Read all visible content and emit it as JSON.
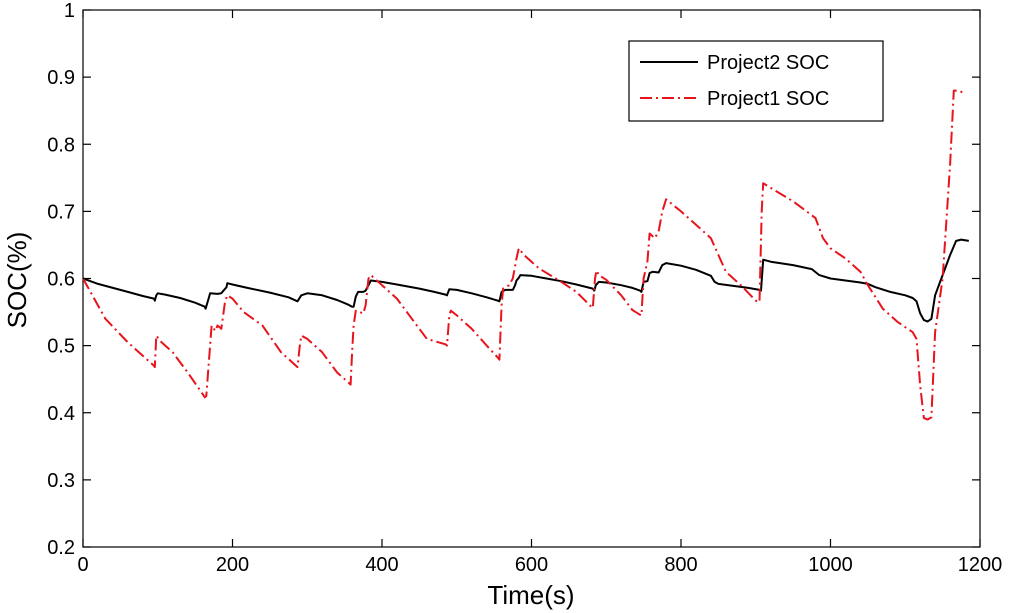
{
  "chart_data": {
    "type": "line",
    "title": "",
    "xlabel": "Time(s)",
    "ylabel": "SOC(%)",
    "xlim": [
      0,
      1200
    ],
    "ylim": [
      0.2,
      1
    ],
    "xticks": [
      0,
      200,
      400,
      600,
      800,
      1000,
      1200
    ],
    "xtick_labels": [
      "0",
      "200",
      "400",
      "600",
      "800",
      "1000",
      "1200"
    ],
    "yticks": [
      0.2,
      0.3,
      0.4,
      0.5,
      0.6,
      0.7,
      0.8,
      0.9,
      1
    ],
    "ytick_labels": [
      "0.2",
      "0.3",
      "0.4",
      "0.5",
      "0.6",
      "0.7",
      "0.8",
      "0.9",
      "1"
    ],
    "grid": false,
    "legend_position": "top-right",
    "series": [
      {
        "name": "Project2 SOC",
        "color": "#000000",
        "style": "solid",
        "points": [
          [
            0,
            0.6
          ],
          [
            5,
            0.598
          ],
          [
            20,
            0.592
          ],
          [
            40,
            0.586
          ],
          [
            60,
            0.58
          ],
          [
            80,
            0.574
          ],
          [
            95,
            0.57
          ],
          [
            96,
            0.567
          ],
          [
            98,
            0.575
          ],
          [
            100,
            0.578
          ],
          [
            110,
            0.576
          ],
          [
            130,
            0.571
          ],
          [
            150,
            0.564
          ],
          [
            163,
            0.558
          ],
          [
            164,
            0.555
          ],
          [
            168,
            0.57
          ],
          [
            170,
            0.578
          ],
          [
            180,
            0.577
          ],
          [
            185,
            0.578
          ],
          [
            188,
            0.582
          ],
          [
            192,
            0.587
          ],
          [
            193,
            0.593
          ],
          [
            200,
            0.591
          ],
          [
            220,
            0.586
          ],
          [
            250,
            0.579
          ],
          [
            275,
            0.572
          ],
          [
            285,
            0.567
          ],
          [
            287,
            0.566
          ],
          [
            292,
            0.575
          ],
          [
            300,
            0.578
          ],
          [
            320,
            0.575
          ],
          [
            340,
            0.568
          ],
          [
            355,
            0.561
          ],
          [
            360,
            0.558
          ],
          [
            362,
            0.558
          ],
          [
            365,
            0.573
          ],
          [
            368,
            0.58
          ],
          [
            375,
            0.58
          ],
          [
            378,
            0.582
          ],
          [
            382,
            0.59
          ],
          [
            385,
            0.597
          ],
          [
            400,
            0.595
          ],
          [
            420,
            0.591
          ],
          [
            450,
            0.585
          ],
          [
            470,
            0.58
          ],
          [
            485,
            0.576
          ],
          [
            487,
            0.575
          ],
          [
            490,
            0.584
          ],
          [
            500,
            0.583
          ],
          [
            520,
            0.578
          ],
          [
            540,
            0.572
          ],
          [
            555,
            0.567
          ],
          [
            557,
            0.566
          ],
          [
            560,
            0.58
          ],
          [
            565,
            0.583
          ],
          [
            575,
            0.583
          ],
          [
            578,
            0.59
          ],
          [
            580,
            0.597
          ],
          [
            583,
            0.601
          ],
          [
            585,
            0.605
          ],
          [
            600,
            0.604
          ],
          [
            620,
            0.6
          ],
          [
            640,
            0.596
          ],
          [
            660,
            0.591
          ],
          [
            682,
            0.585
          ],
          [
            684,
            0.582
          ],
          [
            686,
            0.59
          ],
          [
            690,
            0.595
          ],
          [
            700,
            0.594
          ],
          [
            720,
            0.59
          ],
          [
            735,
            0.586
          ],
          [
            745,
            0.582
          ],
          [
            747,
            0.58
          ],
          [
            750,
            0.595
          ],
          [
            755,
            0.596
          ],
          [
            758,
            0.608
          ],
          [
            762,
            0.61
          ],
          [
            770,
            0.609
          ],
          [
            775,
            0.62
          ],
          [
            780,
            0.623
          ],
          [
            800,
            0.619
          ],
          [
            820,
            0.613
          ],
          [
            840,
            0.604
          ],
          [
            845,
            0.595
          ],
          [
            850,
            0.592
          ],
          [
            870,
            0.589
          ],
          [
            890,
            0.586
          ],
          [
            905,
            0.583
          ],
          [
            907,
            0.582
          ],
          [
            910,
            0.628
          ],
          [
            920,
            0.625
          ],
          [
            950,
            0.62
          ],
          [
            975,
            0.614
          ],
          [
            985,
            0.605
          ],
          [
            1000,
            0.6
          ],
          [
            1020,
            0.597
          ],
          [
            1040,
            0.594
          ],
          [
            1050,
            0.592
          ],
          [
            1060,
            0.587
          ],
          [
            1080,
            0.58
          ],
          [
            1100,
            0.575
          ],
          [
            1110,
            0.571
          ],
          [
            1115,
            0.566
          ],
          [
            1120,
            0.548
          ],
          [
            1125,
            0.538
          ],
          [
            1130,
            0.536
          ],
          [
            1135,
            0.54
          ],
          [
            1140,
            0.575
          ],
          [
            1150,
            0.605
          ],
          [
            1160,
            0.635
          ],
          [
            1168,
            0.656
          ],
          [
            1175,
            0.658
          ],
          [
            1185,
            0.656
          ]
        ]
      },
      {
        "name": "Project1 SOC",
        "color": "#e8141c",
        "style": "dashdot",
        "points": [
          [
            0,
            0.6
          ],
          [
            10,
            0.58
          ],
          [
            30,
            0.54
          ],
          [
            60,
            0.505
          ],
          [
            95,
            0.47
          ],
          [
            96,
            0.468
          ],
          [
            97,
            0.49
          ],
          [
            98,
            0.515
          ],
          [
            105,
            0.505
          ],
          [
            120,
            0.49
          ],
          [
            140,
            0.46
          ],
          [
            160,
            0.428
          ],
          [
            163,
            0.423
          ],
          [
            165,
            0.425
          ],
          [
            170,
            0.5
          ],
          [
            172,
            0.53
          ],
          [
            177,
            0.522
          ],
          [
            180,
            0.53
          ],
          [
            185,
            0.525
          ],
          [
            190,
            0.565
          ],
          [
            193,
            0.575
          ],
          [
            200,
            0.57
          ],
          [
            215,
            0.55
          ],
          [
            240,
            0.53
          ],
          [
            265,
            0.49
          ],
          [
            285,
            0.47
          ],
          [
            287,
            0.468
          ],
          [
            290,
            0.5
          ],
          [
            292,
            0.515
          ],
          [
            300,
            0.51
          ],
          [
            320,
            0.49
          ],
          [
            340,
            0.46
          ],
          [
            355,
            0.445
          ],
          [
            358,
            0.442
          ],
          [
            360,
            0.49
          ],
          [
            362,
            0.53
          ],
          [
            365,
            0.552
          ],
          [
            370,
            0.55
          ],
          [
            375,
            0.548
          ],
          [
            378,
            0.56
          ],
          [
            382,
            0.6
          ],
          [
            385,
            0.605
          ],
          [
            400,
            0.59
          ],
          [
            420,
            0.57
          ],
          [
            440,
            0.54
          ],
          [
            460,
            0.51
          ],
          [
            485,
            0.502
          ],
          [
            487,
            0.5
          ],
          [
            490,
            0.545
          ],
          [
            492,
            0.552
          ],
          [
            500,
            0.545
          ],
          [
            520,
            0.525
          ],
          [
            540,
            0.5
          ],
          [
            555,
            0.482
          ],
          [
            557,
            0.479
          ],
          [
            560,
            0.56
          ],
          [
            562,
            0.585
          ],
          [
            570,
            0.59
          ],
          [
            575,
            0.6
          ],
          [
            580,
            0.63
          ],
          [
            583,
            0.645
          ],
          [
            590,
            0.635
          ],
          [
            610,
            0.615
          ],
          [
            640,
            0.595
          ],
          [
            660,
            0.58
          ],
          [
            680,
            0.558
          ],
          [
            682,
            0.556
          ],
          [
            685,
            0.6
          ],
          [
            687,
            0.612
          ],
          [
            690,
            0.605
          ],
          [
            700,
            0.598
          ],
          [
            720,
            0.575
          ],
          [
            735,
            0.553
          ],
          [
            745,
            0.546
          ],
          [
            747,
            0.545
          ],
          [
            750,
            0.6
          ],
          [
            755,
            0.625
          ],
          [
            758,
            0.667
          ],
          [
            765,
            0.66
          ],
          [
            770,
            0.67
          ],
          [
            775,
            0.7
          ],
          [
            780,
            0.718
          ],
          [
            800,
            0.7
          ],
          [
            820,
            0.68
          ],
          [
            840,
            0.66
          ],
          [
            850,
            0.635
          ],
          [
            860,
            0.61
          ],
          [
            880,
            0.59
          ],
          [
            900,
            0.567
          ],
          [
            905,
            0.565
          ],
          [
            908,
            0.7
          ],
          [
            910,
            0.742
          ],
          [
            920,
            0.735
          ],
          [
            950,
            0.715
          ],
          [
            980,
            0.69
          ],
          [
            990,
            0.66
          ],
          [
            1000,
            0.645
          ],
          [
            1020,
            0.63
          ],
          [
            1040,
            0.61
          ],
          [
            1050,
            0.59
          ],
          [
            1070,
            0.555
          ],
          [
            1090,
            0.535
          ],
          [
            1110,
            0.52
          ],
          [
            1115,
            0.51
          ],
          [
            1120,
            0.44
          ],
          [
            1125,
            0.392
          ],
          [
            1130,
            0.39
          ],
          [
            1135,
            0.393
          ],
          [
            1140,
            0.52
          ],
          [
            1150,
            0.6
          ],
          [
            1160,
            0.77
          ],
          [
            1165,
            0.88
          ],
          [
            1172,
            0.88
          ],
          [
            1180,
            0.875
          ]
        ]
      }
    ]
  }
}
